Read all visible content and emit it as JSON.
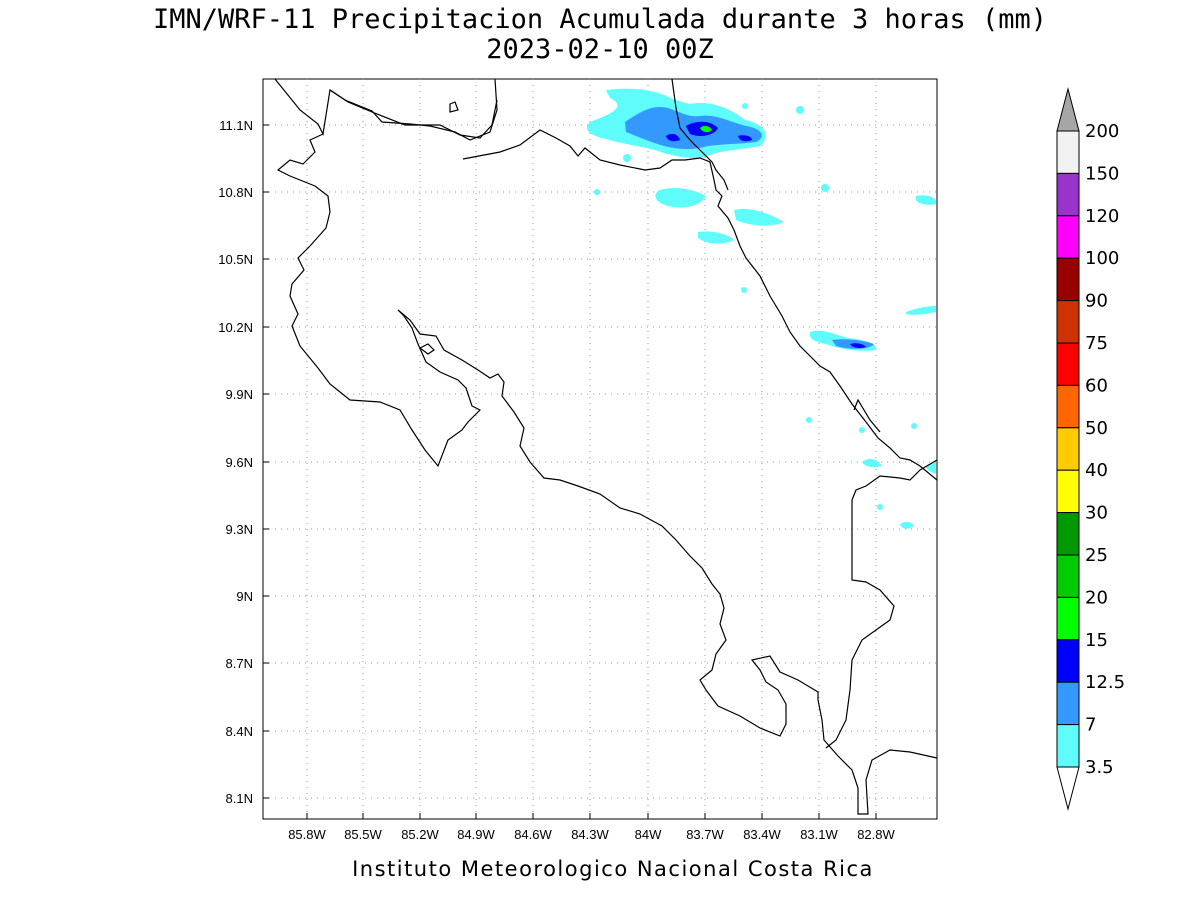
{
  "title": {
    "line1": "IMN/WRF-11 Precipitacion Acumulada durante 3 horas (mm)",
    "line2": "2023-02-10 00Z"
  },
  "credit": "Instituto Meteorologico Nacional Costa Rica",
  "map": {
    "lon_range": [
      -86.0,
      -82.3
    ],
    "lat_range": [
      8.0,
      11.3
    ],
    "x_ticks": [
      "85.8W",
      "85.5W",
      "85.2W",
      "84.9W",
      "84.6W",
      "84.3W",
      "84W",
      "83.7W",
      "83.4W",
      "83.1W",
      "82.8W"
    ],
    "y_ticks": [
      "11.1N",
      "10.8N",
      "10.5N",
      "10.2N",
      "9.9N",
      "9.6N",
      "9.3N",
      "9N",
      "8.7N",
      "8.4N",
      "8.1N"
    ],
    "grid": true
  },
  "colorbar": {
    "levels": [
      "3.5",
      "7",
      "12.5",
      "15",
      "20",
      "25",
      "30",
      "40",
      "50",
      "60",
      "75",
      "90",
      "100",
      "120",
      "150",
      "200"
    ],
    "colors": [
      "#5ffcfc",
      "#3399ff",
      "#0000ff",
      "#00ff00",
      "#00cc00",
      "#009900",
      "#ffff00",
      "#ffcc00",
      "#ff6600",
      "#ff0000",
      "#cc3300",
      "#990000",
      "#ff00ff",
      "#9933cc",
      "#f2f2f2"
    ],
    "over_color": "#a6a6a6",
    "under_color": "#ffffff"
  }
}
